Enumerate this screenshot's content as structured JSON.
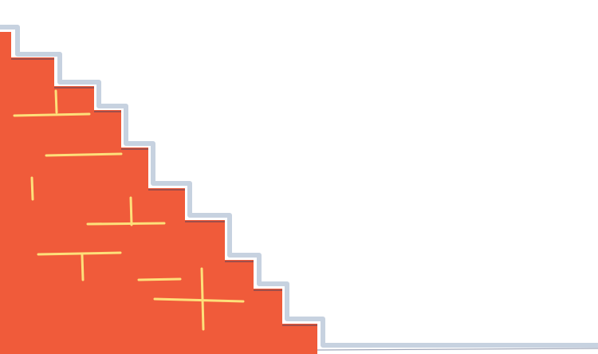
{
  "illustration": {
    "subject": "brick-staircase",
    "colors": {
      "background": "#ffffff",
      "brick_fill": "#f05b3a",
      "mortar_lines": "#fde07a",
      "step_edge_shadow": "#c7d2e0",
      "step_edge_dark": "#2d3b63"
    }
  }
}
